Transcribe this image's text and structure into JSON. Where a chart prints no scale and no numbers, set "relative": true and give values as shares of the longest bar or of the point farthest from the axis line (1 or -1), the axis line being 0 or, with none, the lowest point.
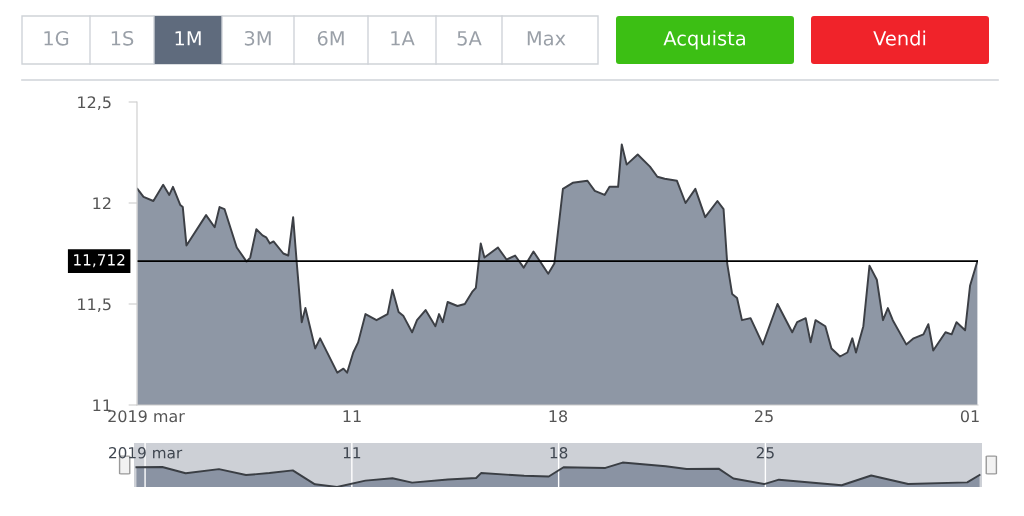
{
  "chart_data": [
    {
      "type": "other",
      "annotations": [
        "1G",
        "1S",
        "1M",
        "3M",
        "6M",
        "1A",
        "5A",
        "Max",
        "Acquista",
        "Vendi"
      ]
    },
    {
      "type": "area",
      "x": [
        "2019-03-03T17:00",
        "2019-03-03T22:00",
        "2019-03-04T06:00",
        "2019-03-04T14:00",
        "2019-03-04T19:00",
        "2019-03-04T22:00",
        "2019-03-05T04:00",
        "2019-03-05T06:00",
        "2019-03-05T09:00",
        "2019-03-06T01:00",
        "2019-03-06T08:00",
        "2019-03-06T12:00",
        "2019-03-06T16:00",
        "2019-03-07T02:00",
        "2019-03-07T10:00",
        "2019-03-07T13:00",
        "2019-03-07T18:00",
        "2019-03-07T23:00",
        "2019-03-08T02:00",
        "2019-03-08T05:00",
        "2019-03-08T08:00",
        "2019-03-08T16:00",
        "2019-03-08T20:00",
        "2019-03-09T00:00",
        "2019-03-09T03:00",
        "2019-03-09T07:00",
        "2019-03-09T10:00",
        "2019-03-09T18:00",
        "2019-03-09T22:00",
        "2019-03-10T12:00",
        "2019-03-10T17:00",
        "2019-03-10T20:00",
        "2019-03-11T01:00",
        "2019-03-11T05:00",
        "2019-03-11T11:00",
        "2019-03-11T20:00",
        "2019-03-12T05:00",
        "2019-03-12T09:00",
        "2019-03-12T14:00",
        "2019-03-12T18:00",
        "2019-03-13T01:00",
        "2019-03-13T05:00",
        "2019-03-13T12:00",
        "2019-03-13T20:00",
        "2019-03-13T23:00",
        "2019-03-14T02:00",
        "2019-03-14T06:00",
        "2019-03-14T14:00",
        "2019-03-14T20:00",
        "2019-03-15T02:00",
        "2019-03-15T05:00",
        "2019-03-15T09:00",
        "2019-03-15T12:00",
        "2019-03-15T23:00",
        "2019-03-16T06:00",
        "2019-03-16T13:00",
        "2019-03-16T20:00",
        "2019-03-17T04:00",
        "2019-03-17T16:00",
        "2019-03-17T21:00",
        "2019-03-18T04:00",
        "2019-03-18T12:00",
        "2019-03-19T00:00",
        "2019-03-19T06:00",
        "2019-03-19T14:00",
        "2019-03-19T18:00",
        "2019-03-20T01:00",
        "2019-03-20T04:00",
        "2019-03-20T08:00",
        "2019-03-20T17:00",
        "2019-03-21T03:00",
        "2019-03-21T09:00",
        "2019-03-21T15:00",
        "2019-03-22T01:00",
        "2019-03-22T08:00",
        "2019-03-22T16:00",
        "2019-03-23T00:00",
        "2019-03-23T10:00",
        "2019-03-23T15:00",
        "2019-03-23T18:00",
        "2019-03-23T22:00",
        "2019-03-24T02:00",
        "2019-03-24T06:00",
        "2019-03-24T13:00",
        "2019-03-24T23:00",
        "2019-03-25T11:00",
        "2019-03-25T23:00",
        "2019-03-26T03:00",
        "2019-03-26T10:00",
        "2019-03-26T14:00",
        "2019-03-26T18:00",
        "2019-03-27T02:00",
        "2019-03-27T07:00",
        "2019-03-27T14:00",
        "2019-03-27T20:00",
        "2019-03-28T00:00",
        "2019-03-28T03:00",
        "2019-03-28T09:00",
        "2019-03-28T14:00",
        "2019-03-28T20:00",
        "2019-03-29T01:00",
        "2019-03-29T05:00",
        "2019-03-29T09:00",
        "2019-03-29T20:00",
        "2019-03-30T02:00",
        "2019-03-30T10:00",
        "2019-03-30T14:00",
        "2019-03-30T18:00",
        "2019-03-31T04:00",
        "2019-03-31T09:00",
        "2019-03-31T13:00",
        "2019-03-31T20:00",
        "2019-04-01T00:00",
        "2019-04-01T06:00"
      ],
      "series": [
        {
          "color": "#8e97a5",
          "values": [
            12.07,
            12.03,
            12.01,
            12.09,
            12.04,
            12.08,
            11.99,
            11.98,
            11.79,
            11.94,
            11.88,
            11.98,
            11.97,
            11.78,
            11.71,
            11.73,
            11.87,
            11.84,
            11.83,
            11.8,
            11.81,
            11.75,
            11.74,
            11.93,
            11.7,
            11.41,
            11.48,
            11.28,
            11.33,
            11.16,
            11.18,
            11.16,
            11.26,
            11.31,
            11.45,
            11.42,
            11.45,
            11.57,
            11.46,
            11.44,
            11.36,
            11.42,
            11.47,
            11.39,
            11.45,
            11.41,
            11.51,
            11.49,
            11.5,
            11.56,
            11.58,
            11.8,
            11.73,
            11.78,
            11.72,
            11.74,
            11.68,
            11.76,
            11.65,
            11.7,
            12.07,
            12.1,
            12.11,
            12.06,
            12.04,
            12.08,
            12.08,
            12.29,
            12.19,
            12.24,
            12.18,
            12.13,
            12.12,
            12.11,
            12.0,
            12.07,
            11.93,
            12.01,
            11.97,
            11.7,
            11.55,
            11.53,
            11.42,
            11.43,
            11.3,
            11.5,
            11.36,
            11.41,
            11.43,
            11.31,
            11.42,
            11.39,
            11.28,
            11.24,
            11.26,
            11.33,
            11.26,
            11.39,
            11.69,
            11.62,
            11.42,
            11.48,
            11.42,
            11.3,
            11.33,
            11.35,
            11.4,
            11.27,
            11.36,
            11.35,
            11.41,
            11.37,
            11.59,
            11.712
          ]
        }
      ],
      "xlim": [
        "2019-03-03T16:40",
        "2019-04-01T06:30"
      ],
      "xticks": [
        {
          "value": "2019-03-04",
          "label": "2019 mar"
        },
        {
          "value": "2019-03-11",
          "label": "11"
        },
        {
          "value": "2019-03-18",
          "label": "18"
        },
        {
          "value": "2019-03-25",
          "label": "25"
        },
        {
          "value": "2019-04-01",
          "label": "01"
        }
      ],
      "ylim": [
        11,
        12.5
      ],
      "yticks": [
        11,
        {
          "value": 11.5,
          "label": "11,5"
        },
        12,
        {
          "value": 12.5,
          "label": "12,5"
        }
      ],
      "ref_lines": [
        {
          "axis": "y",
          "value": 11.712,
          "label": "11,712",
          "color": "#000000"
        }
      ]
    },
    {
      "type": "area",
      "relative": true,
      "grid": "x",
      "tick_labels": "x",
      "x": [
        "2019-03-03T17:00",
        "2019-03-04T14:00",
        "2019-03-05T09:00",
        "2019-03-06T12:00",
        "2019-03-07T10:00",
        "2019-03-08T05:00",
        "2019-03-09T00:00",
        "2019-03-09T18:00",
        "2019-03-10T12:00",
        "2019-03-11T11:00",
        "2019-03-12T09:00",
        "2019-03-13T01:00",
        "2019-03-14T06:00",
        "2019-03-15T05:00",
        "2019-03-15T09:00",
        "2019-03-16T20:00",
        "2019-03-17T16:00",
        "2019-03-18T04:00",
        "2019-03-19T14:00",
        "2019-03-20T04:00",
        "2019-03-21T15:00",
        "2019-03-22T08:00",
        "2019-03-23T10:00",
        "2019-03-23T22:00",
        "2019-03-24T23:00",
        "2019-03-25T11:00",
        "2019-03-27T14:00",
        "2019-03-28T14:00",
        "2019-03-29T20:00",
        "2019-03-31T20:00",
        "2019-04-01T06:00"
      ],
      "series": [
        {
          "color": "#8a93a3",
          "values": [
            0.81,
            0.82,
            0.56,
            0.73,
            0.49,
            0.57,
            0.68,
            0.11,
            0,
            0.26,
            0.36,
            0.18,
            0.31,
            0.37,
            0.57,
            0.46,
            0.43,
            0.81,
            0.78,
            1,
            0.85,
            0.74,
            0.75,
            0.35,
            0.12,
            0.3,
            0.07,
            0.47,
            0.12,
            0.19,
            0.49
          ]
        }
      ],
      "xlim": [
        "2019-03-03T15:00",
        "2019-04-01T08:00"
      ],
      "xticks": [
        {
          "value": "2019-03-04",
          "label": "2019 mar"
        },
        {
          "value": "2019-03-11",
          "label": "11"
        },
        {
          "value": "2019-03-18",
          "label": "18"
        },
        {
          "value": "2019-03-25",
          "label": "25"
        }
      ]
    }
  ]
}
